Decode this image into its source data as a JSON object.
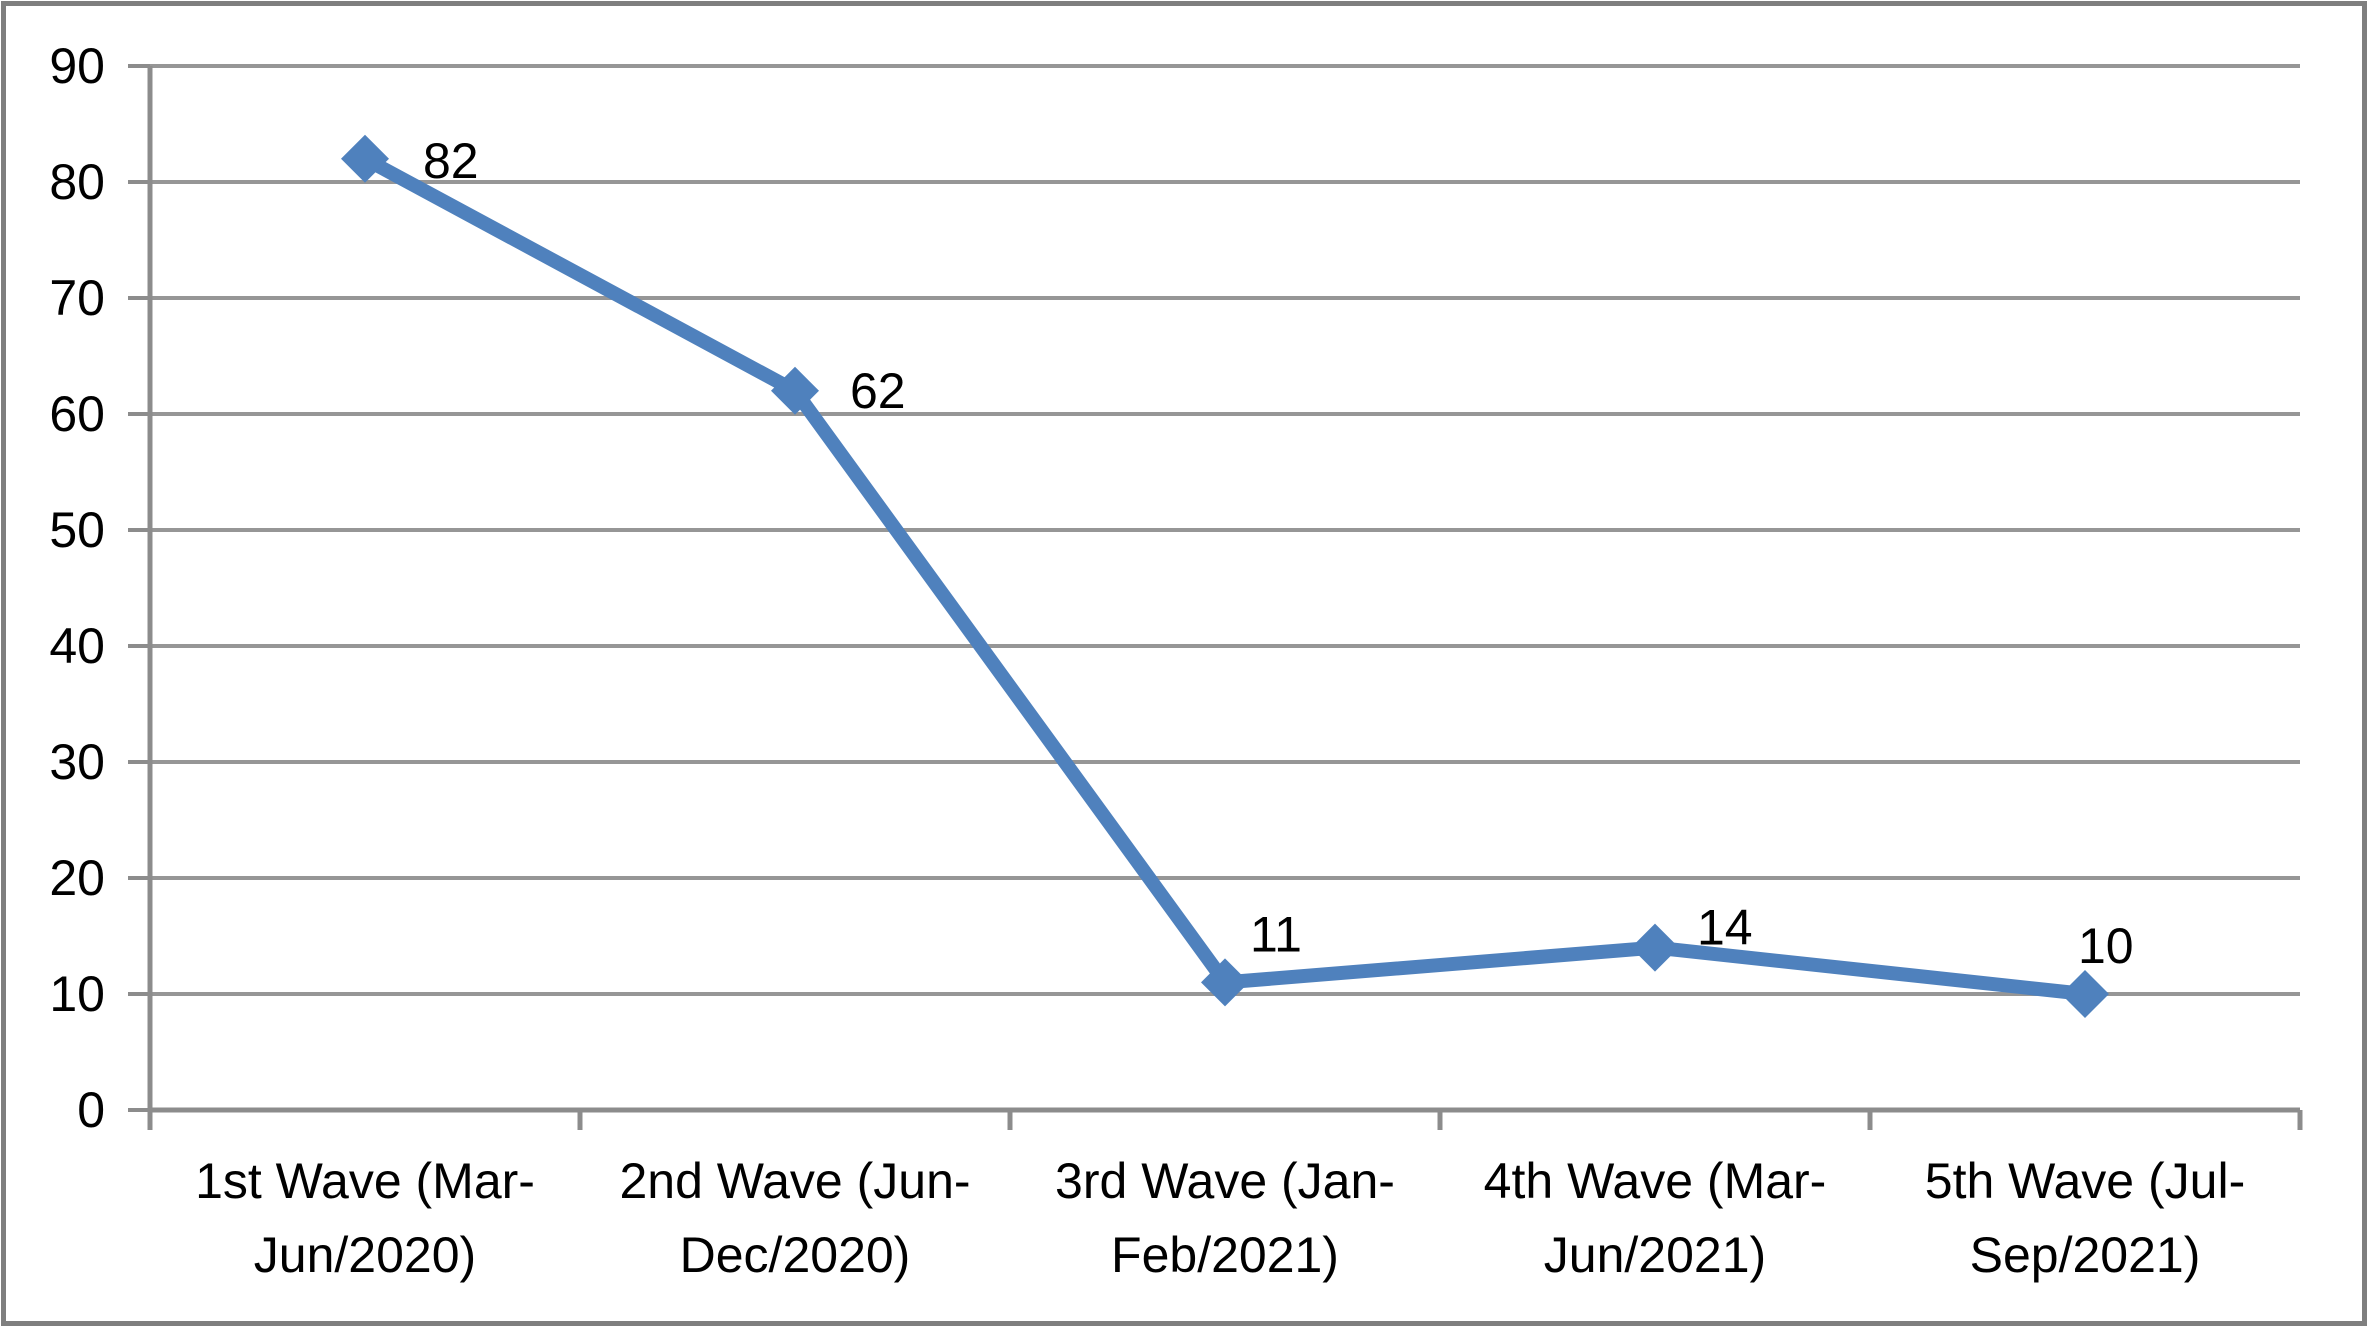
{
  "chart_data": {
    "type": "line",
    "title": "",
    "xlabel": "",
    "ylabel": "",
    "categories": [
      "1st Wave (Mar-Jun/2020)",
      "2nd Wave (Jun-Dec/2020)",
      "3rd Wave (Jan-Feb/2021)",
      "4th Wave (Mar-Jun/2021)",
      "5th Wave (Jul-Sep/2021)"
    ],
    "category_label_lines": [
      [
        "1st Wave (Mar-",
        "Jun/2020)"
      ],
      [
        "2nd Wave (Jun-",
        "Dec/2020)"
      ],
      [
        "3rd Wave (Jan-",
        "Feb/2021)"
      ],
      [
        "4th Wave (Mar-",
        "Jun/2021)"
      ],
      [
        "5th Wave (Jul-",
        "Sep/2021)"
      ]
    ],
    "values": [
      82,
      62,
      11,
      14,
      10
    ],
    "data_labels": [
      "82",
      "62",
      "11",
      "14",
      "10"
    ],
    "ylim": [
      0,
      90
    ],
    "yticks": [
      0,
      10,
      20,
      30,
      40,
      50,
      60,
      70,
      80,
      90
    ],
    "grid": true,
    "legend": "none",
    "marker": "diamond",
    "colors": {
      "line": "#4F81BD",
      "gridline": "#969696",
      "axis": "#8C8C8C",
      "border": "#7F7F7F",
      "text": "#000000",
      "background": "#FFFFFF"
    }
  }
}
